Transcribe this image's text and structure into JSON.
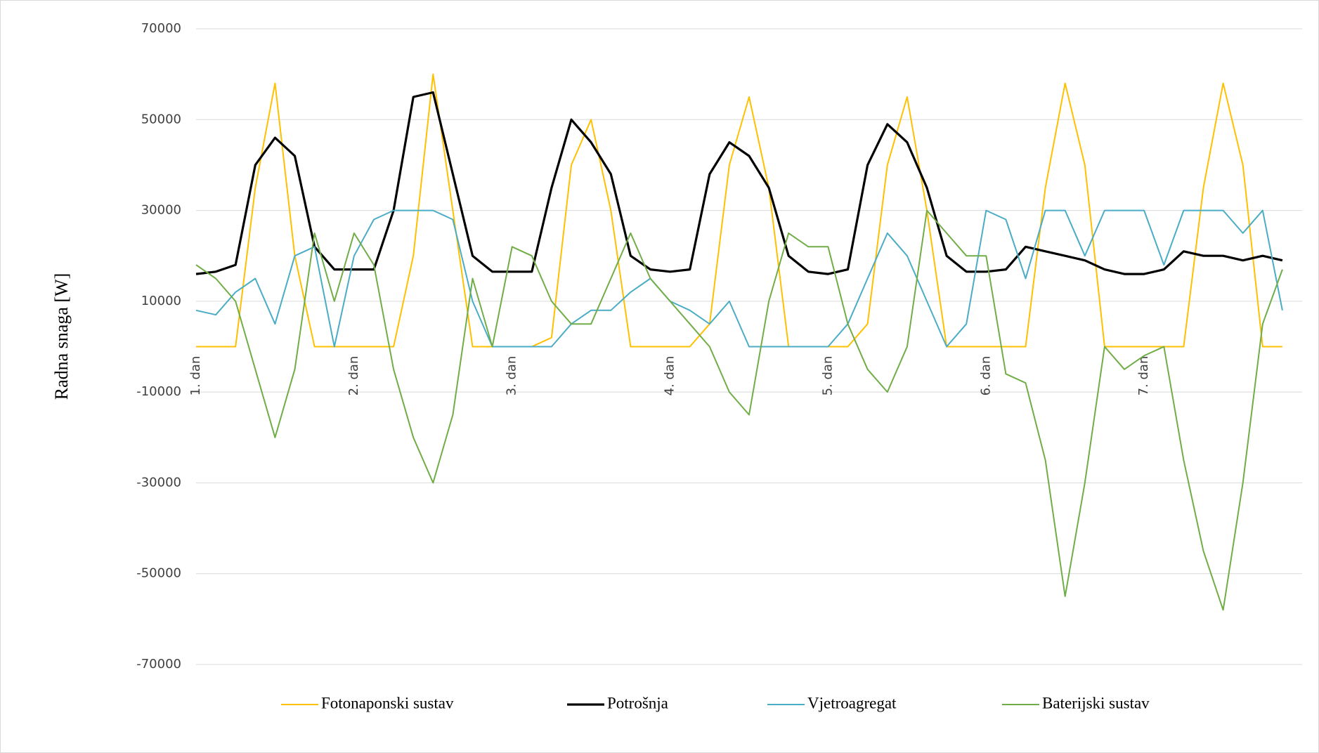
{
  "chart_data": {
    "type": "line",
    "y_label": "Radna snaga [W]",
    "categories": [
      "1. dan",
      null,
      null,
      null,
      null,
      null,
      null,
      null,
      "2. dan",
      null,
      null,
      null,
      null,
      null,
      null,
      null,
      "3. dan",
      null,
      null,
      null,
      null,
      null,
      null,
      null,
      "4. dan",
      null,
      null,
      null,
      null,
      null,
      null,
      null,
      "5. dan",
      null,
      null,
      null,
      null,
      null,
      null,
      null,
      "6. dan",
      null,
      null,
      null,
      null,
      null,
      null,
      null,
      "7. dan",
      null,
      null,
      null,
      null,
      null,
      null,
      null
    ],
    "ylim": [
      -70000,
      70000
    ],
    "yticks": [
      -70000,
      -50000,
      -30000,
      -10000,
      10000,
      30000,
      50000,
      70000
    ],
    "grid": true,
    "legend": "bottom",
    "series": [
      {
        "name": "Fotonaponski sustav",
        "color": "#ffc000",
        "values": [
          0,
          0,
          0,
          35000,
          58000,
          20000,
          0,
          0,
          0,
          0,
          0,
          20000,
          60000,
          30000,
          0,
          0,
          0,
          0,
          2000,
          40000,
          50000,
          30000,
          0,
          0,
          0,
          0,
          5000,
          40000,
          55000,
          35000,
          0,
          0,
          0,
          0,
          5000,
          40000,
          55000,
          30000,
          0,
          0,
          0,
          0,
          0,
          35000,
          58000,
          40000,
          0,
          0,
          0,
          0,
          0,
          35000,
          58000,
          40000,
          0,
          0
        ]
      },
      {
        "name": "Potrošnja",
        "color": "#000000",
        "values": [
          16000,
          16500,
          18000,
          40000,
          46000,
          42000,
          22000,
          17000,
          17000,
          17000,
          30000,
          55000,
          56000,
          38000,
          20000,
          16500,
          16500,
          16500,
          35000,
          50000,
          45000,
          38000,
          20000,
          17000,
          16500,
          17000,
          38000,
          45000,
          42000,
          35000,
          20000,
          16500,
          16000,
          17000,
          40000,
          49000,
          45000,
          35000,
          20000,
          16500,
          16500,
          17000,
          22000,
          21000,
          20000,
          19000,
          17000,
          16000,
          16000,
          17000,
          21000,
          20000,
          20000,
          19000,
          20000,
          19000
        ]
      },
      {
        "name": "Vjetroagregat",
        "color": "#4bacc6",
        "values": [
          8000,
          7000,
          12000,
          15000,
          5000,
          20000,
          22000,
          0,
          20000,
          28000,
          30000,
          30000,
          30000,
          28000,
          10000,
          0,
          0,
          0,
          0,
          5000,
          8000,
          8000,
          12000,
          15000,
          10000,
          8000,
          5000,
          10000,
          0,
          0,
          0,
          0,
          0,
          5000,
          15000,
          25000,
          20000,
          10000,
          0,
          5000,
          30000,
          28000,
          15000,
          30000,
          30000,
          20000,
          30000,
          30000,
          30000,
          18000,
          30000,
          30000,
          30000,
          25000,
          30000,
          8000
        ]
      },
      {
        "name": "Baterijski sustav",
        "color": "#70ad47",
        "values": [
          18000,
          15000,
          10000,
          -5000,
          -20000,
          -5000,
          25000,
          10000,
          25000,
          18000,
          -5000,
          -20000,
          -30000,
          -15000,
          15000,
          0,
          22000,
          20000,
          10000,
          5000,
          5000,
          15000,
          25000,
          15000,
          10000,
          5000,
          0,
          -10000,
          -15000,
          10000,
          25000,
          22000,
          22000,
          5000,
          -5000,
          -10000,
          0,
          30000,
          25000,
          20000,
          20000,
          -6000,
          -8000,
          -25000,
          -55000,
          -30000,
          0,
          -5000,
          -2000,
          0,
          -25000,
          -45000,
          -58000,
          -30000,
          5000,
          17000
        ]
      }
    ]
  }
}
